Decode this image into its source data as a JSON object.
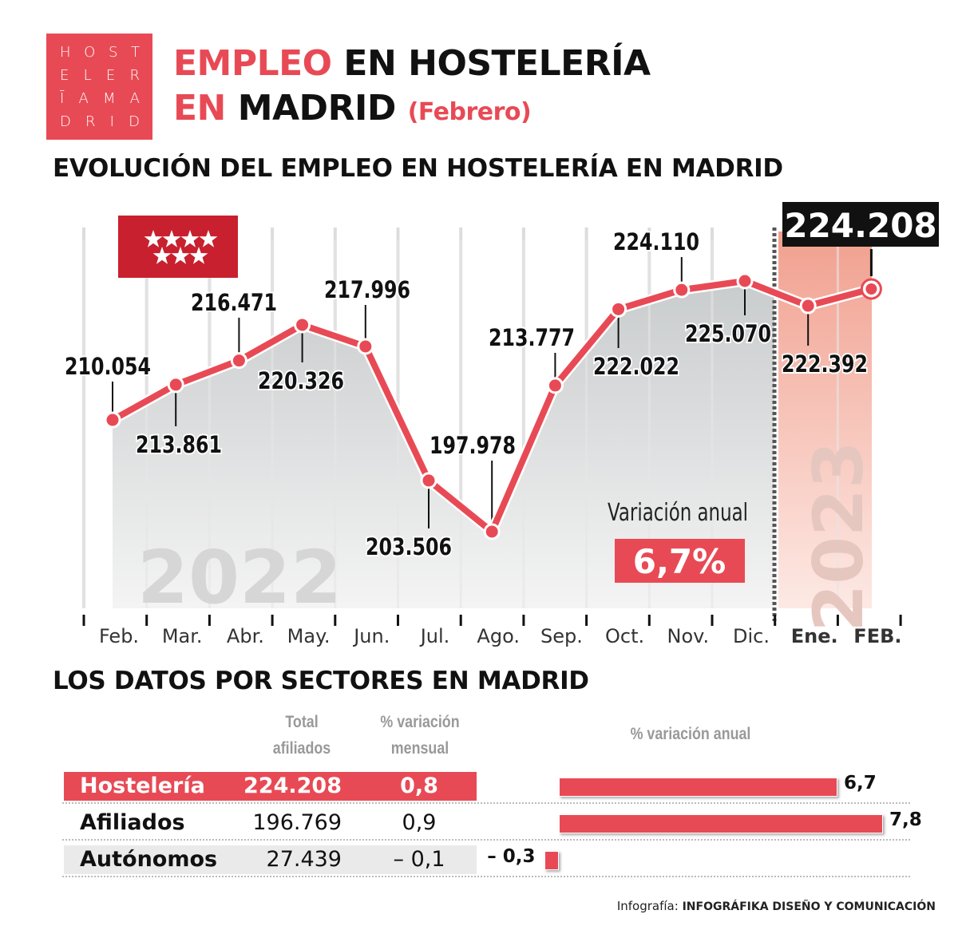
{
  "logo": {
    "rows": [
      [
        "H",
        "O",
        "S",
        "T"
      ],
      [
        "E",
        "L",
        "E",
        "R"
      ],
      [
        "Ī",
        "A",
        "M",
        "A"
      ],
      [
        "D",
        "R",
        "I",
        "D"
      ]
    ],
    "color": "#e84a55"
  },
  "header": {
    "title_red_1": "EMPLEO",
    "title_black_1": "EN HOSTELERÍA",
    "title_red_2": "EN",
    "title_black_2": "MADRID",
    "subtitle": "(Febrero)"
  },
  "chart_section_title": "EVOLUCIÓN DEL EMPLEO EN HOSTELERÍA EN MADRID",
  "chart_data": {
    "type": "line",
    "categories": [
      "Feb.",
      "Mar.",
      "Abr.",
      "May.",
      "Jun.",
      "Jul.",
      "Ago.",
      "Sep.",
      "Oct.",
      "Nov.",
      "Dic.",
      "Ene.",
      "FEB."
    ],
    "values": [
      210054,
      213861,
      216471,
      220326,
      217996,
      203506,
      197978,
      213777,
      222022,
      224110,
      225070,
      222392,
      224208
    ],
    "value_labels": [
      "210.054",
      "213.861",
      "216.471",
      "220.326",
      "217.996",
      "203.506",
      "197.978",
      "213.777",
      "222.022",
      "224.110",
      "225.070",
      "222.392",
      "224.208"
    ],
    "year_labels": [
      "2022",
      "2023"
    ],
    "grid": true,
    "line_color": "#e84a55",
    "annotation": {
      "label": "Variación anual",
      "value": "6,7%"
    }
  },
  "table": {
    "title": "LOS DATOS POR SECTORES EN MADRID",
    "headers": {
      "total": [
        "Total",
        "afiliados"
      ],
      "mensual": [
        "% variación",
        "mensual"
      ],
      "anual": "% variación anual"
    },
    "rows": [
      {
        "name": "Hostelería",
        "total": "224.208",
        "mensual": "0,8",
        "anual": 6.7,
        "anual_label": "6,7"
      },
      {
        "name": "Afiliados",
        "total": "196.769",
        "mensual": "0,9",
        "anual": 7.8,
        "anual_label": "7,8"
      },
      {
        "name": "Autónomos",
        "total": "27.439",
        "mensual": "– 0,1",
        "anual": -0.3,
        "anual_label": "– 0,3"
      }
    ]
  },
  "credit": {
    "prefix": "Infografía:",
    "name": "INFOGRÁFIKA DISEÑO Y COMUNICACIÓN"
  }
}
